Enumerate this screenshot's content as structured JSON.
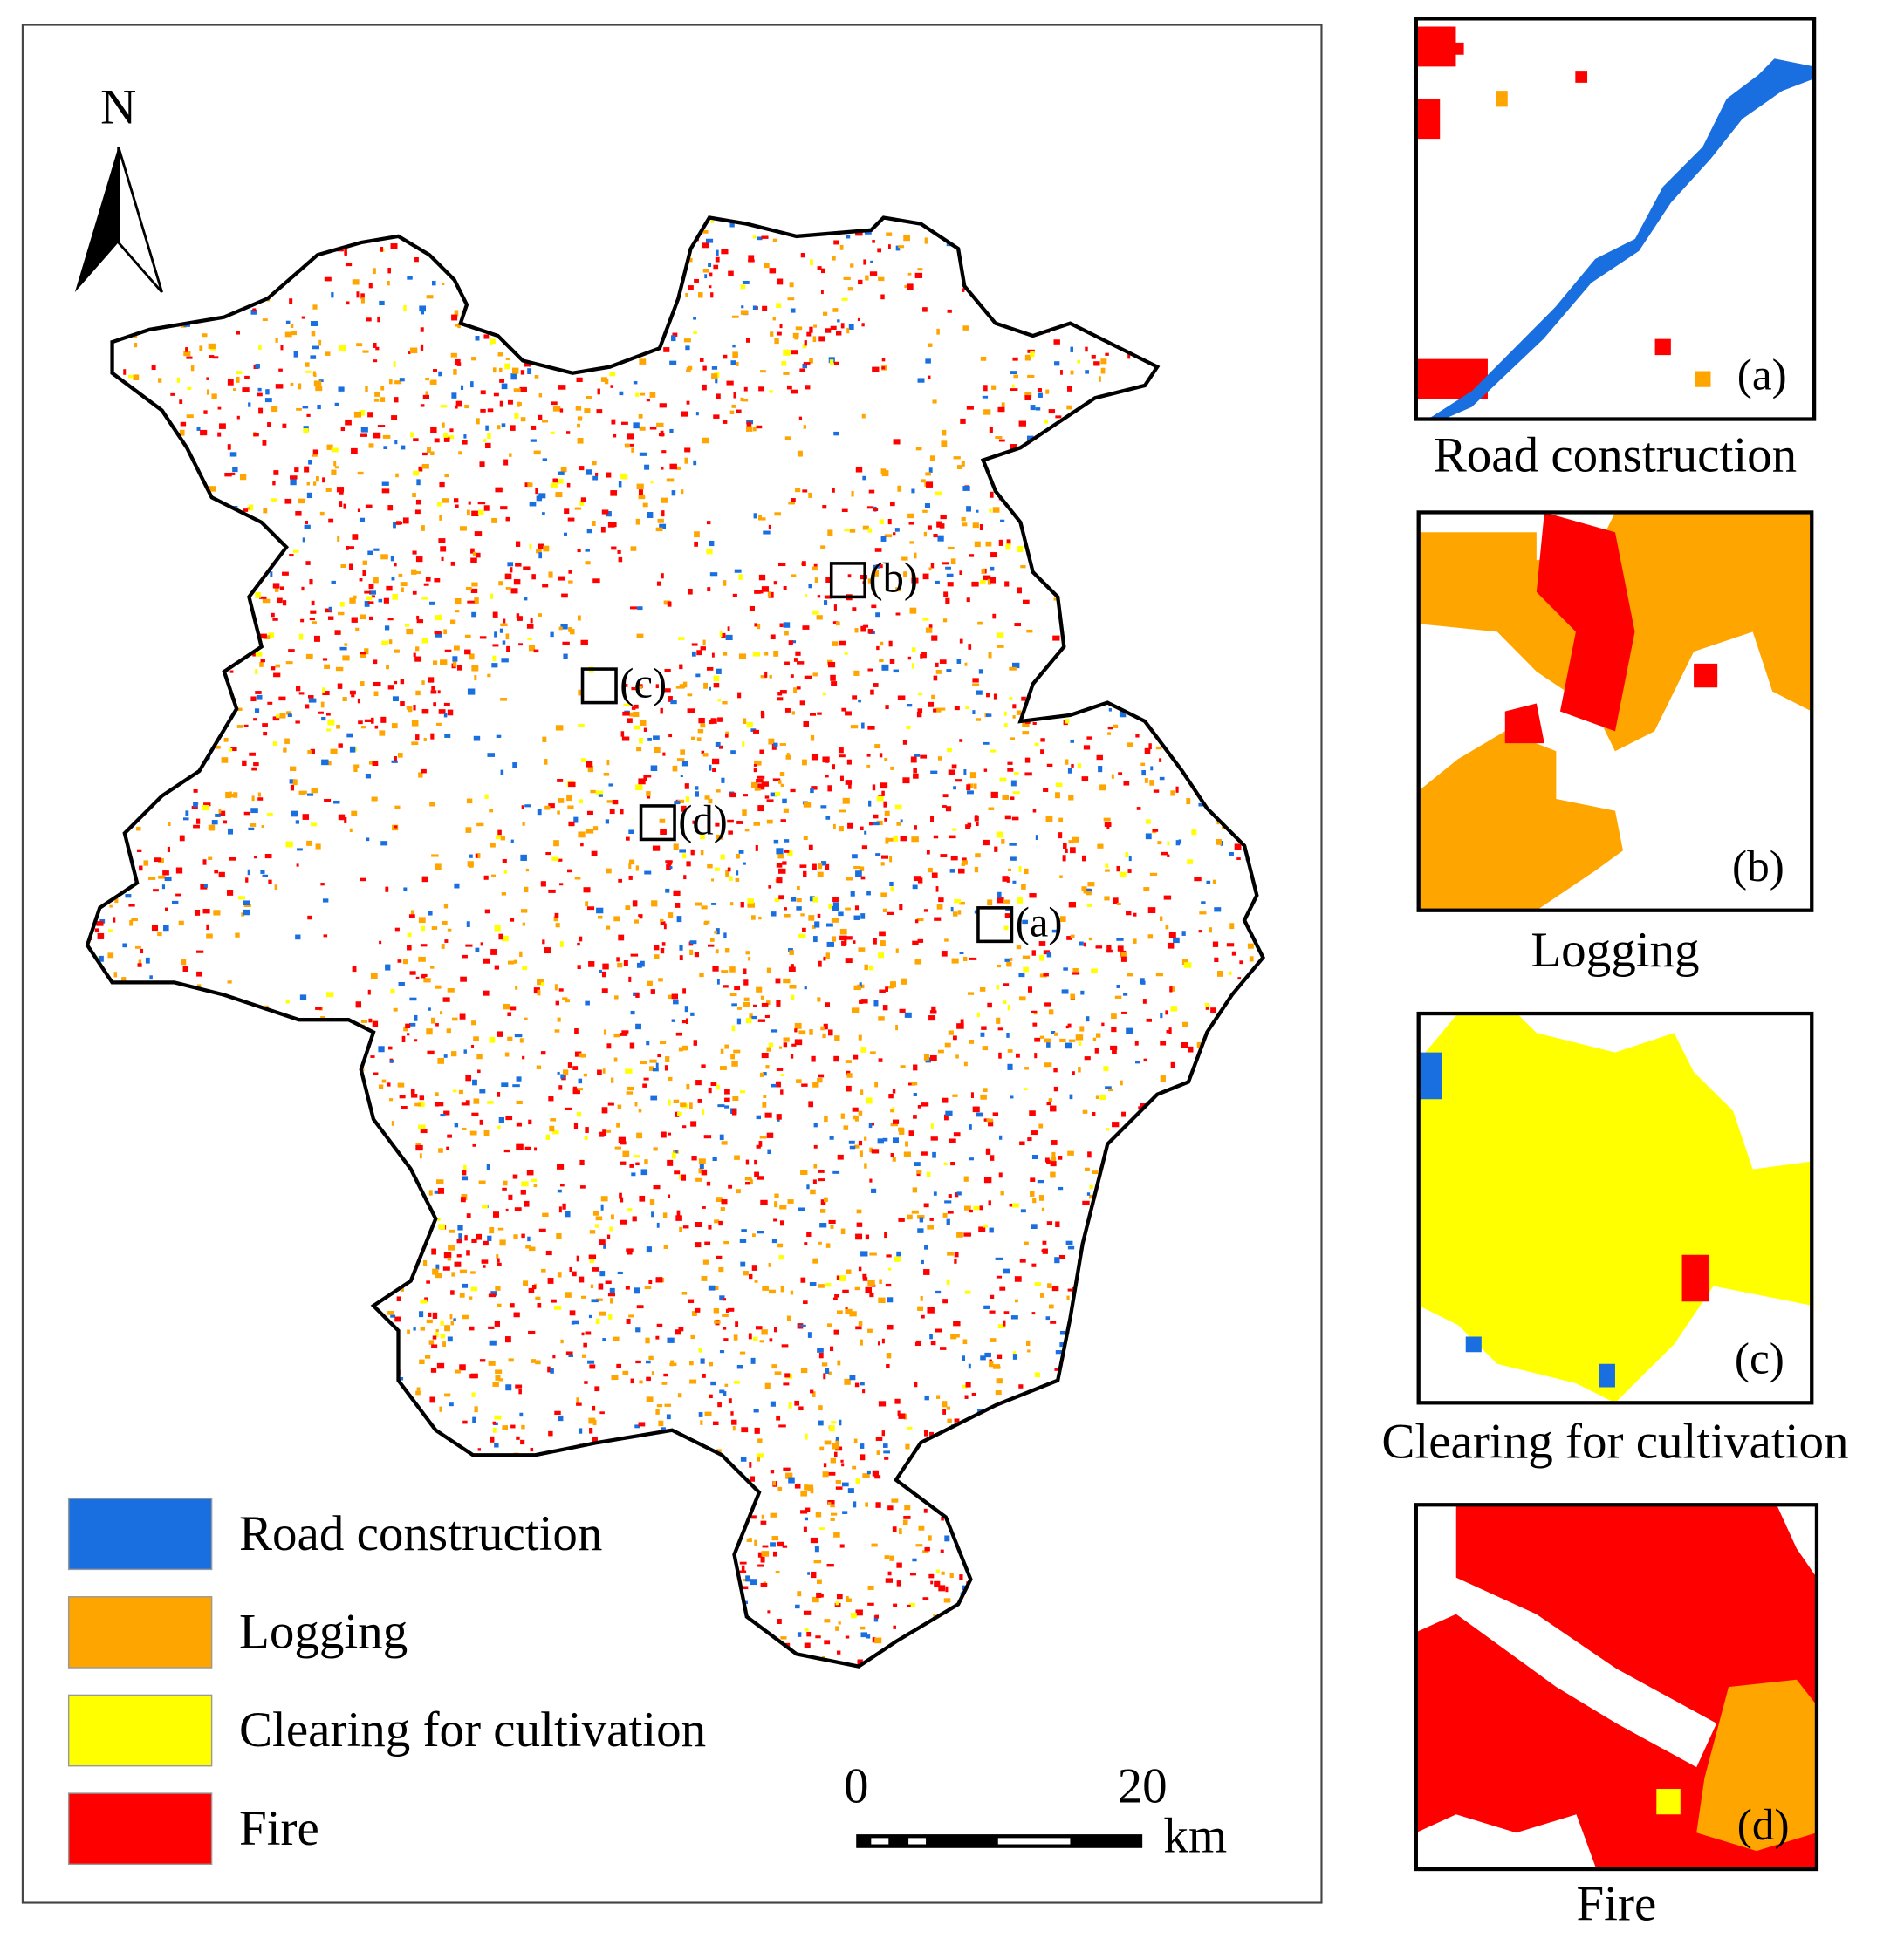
{
  "map": {
    "north_label": "N",
    "legend": [
      {
        "label": "Road construction",
        "color": "#1a6fe0"
      },
      {
        "label": "Logging",
        "color": "#ffa500"
      },
      {
        "label": "Clearing for cultivation",
        "color": "#ffff00"
      },
      {
        "label": "Fire",
        "color": "#ff0000"
      }
    ],
    "scale_bar": {
      "ticks": [
        0,
        20
      ],
      "unit": "km"
    },
    "insets": [
      {
        "label": "(a)",
        "caption": "Road construction"
      },
      {
        "label": "(b)",
        "caption": "Logging"
      },
      {
        "label": "(c)",
        "caption": "Clearing for cultivation"
      },
      {
        "label": "(d)",
        "caption": "Fire"
      }
    ]
  }
}
